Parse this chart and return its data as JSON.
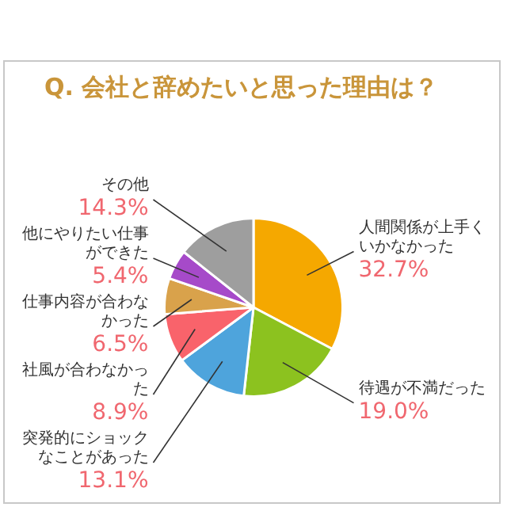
{
  "chart_data": {
    "type": "pie",
    "title": "Q. 会社と辞めたいと思った理由は？",
    "categories": [
      "人間関係が上手くいかなかった",
      "待遇が不満だった",
      "突発的にショックなことがあった",
      "社風が合わなかった",
      "仕事内容が合わなかった",
      "他にやりたい仕事ができた",
      "その他"
    ],
    "values": [
      32.7,
      19.0,
      13.1,
      8.9,
      6.5,
      5.4,
      14.3
    ],
    "colors": [
      "#f5a800",
      "#8cc21f",
      "#4ea4dc",
      "#f9636b",
      "#d9a24b",
      "#a64ac9",
      "#9e9e9e"
    ],
    "value_labels": [
      "32.7%",
      "19.0%",
      "13.1%",
      "8.9%",
      "6.5%",
      "5.4%",
      "14.3%"
    ]
  }
}
